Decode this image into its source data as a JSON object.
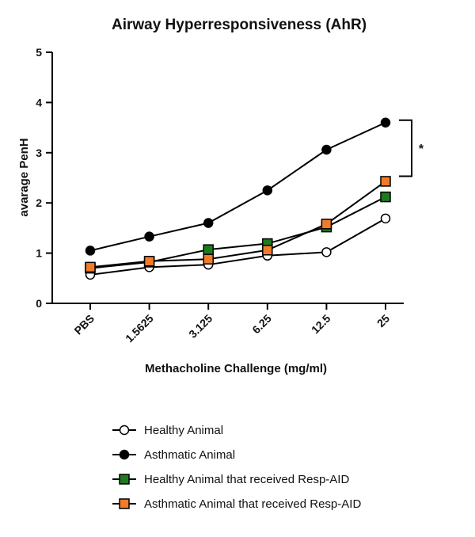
{
  "chart_data": {
    "type": "line",
    "title": "Airway Hyperresponsiveness (AhR)",
    "xlabel": "Methacholine Challenge (mg/ml)",
    "ylabel": "avarage PenH",
    "categories": [
      "PBS",
      "1.5625",
      "3.125",
      "6.25",
      "12.5",
      "25"
    ],
    "ylim": [
      0,
      5
    ],
    "yticks": [
      "0",
      "1",
      "2",
      "3",
      "4",
      "5"
    ],
    "grid": false,
    "legend_position": "bottom",
    "series": [
      {
        "name": "Healthy Animal",
        "values": [
          0.57,
          0.72,
          0.77,
          0.95,
          1.02,
          1.69
        ],
        "marker": "circle",
        "fill": "#ffffff",
        "stroke": "#000000"
      },
      {
        "name": "Asthmatic Animal",
        "values": [
          1.05,
          1.33,
          1.6,
          2.25,
          3.06,
          3.6
        ],
        "marker": "circle",
        "fill": "#000000",
        "stroke": "#000000"
      },
      {
        "name": "Healthy Animal that received Resp-AID",
        "values": [
          0.7,
          0.82,
          1.07,
          1.19,
          1.52,
          2.12
        ],
        "marker": "square",
        "fill": "#1f7a1f",
        "stroke": "#000000"
      },
      {
        "name": "Asthmatic Animal that received Resp-AID",
        "values": [
          0.72,
          0.84,
          0.88,
          1.06,
          1.58,
          2.43
        ],
        "marker": "square",
        "fill": "#f07c2a",
        "stroke": "#000000"
      }
    ],
    "annotation": {
      "text": "*",
      "bracket_from": 2.5,
      "bracket_to": 3.6
    }
  }
}
